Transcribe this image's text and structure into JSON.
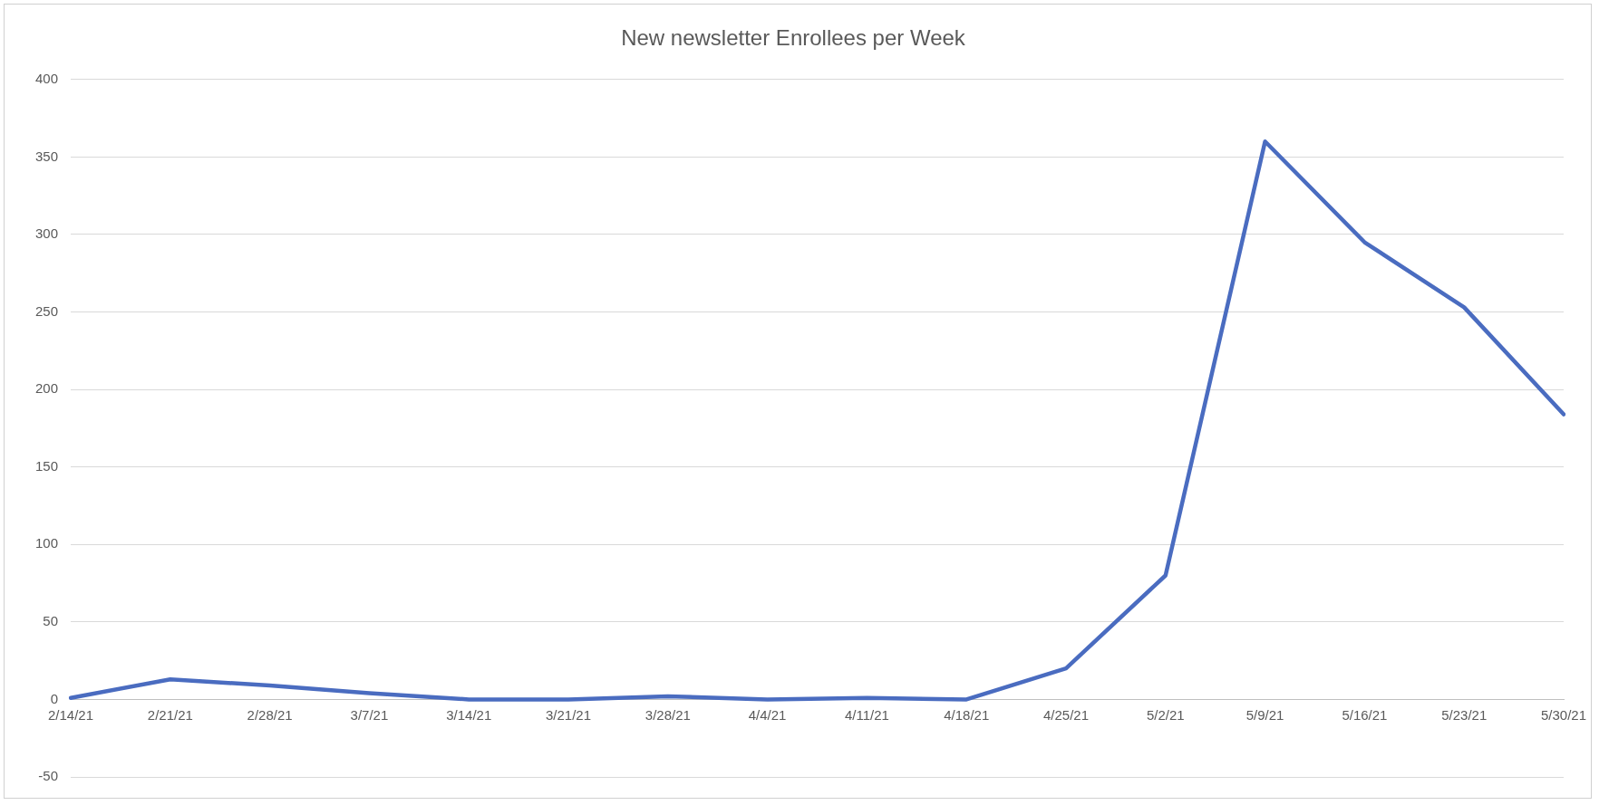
{
  "chart_data": {
    "type": "line",
    "title": "New newsletter Enrollees per Week",
    "categories": [
      "2/14/21",
      "2/21/21",
      "2/28/21",
      "3/7/21",
      "3/14/21",
      "3/21/21",
      "3/28/21",
      "4/4/21",
      "4/11/21",
      "4/18/21",
      "4/25/21",
      "5/2/21",
      "5/9/21",
      "5/16/21",
      "5/23/21",
      "5/30/21"
    ],
    "series": [
      {
        "color": "#4a6cc0",
        "values": [
          1,
          13,
          9,
          4,
          0,
          0,
          2,
          0,
          1,
          0,
          20,
          80,
          360,
          295,
          253,
          184
        ]
      }
    ],
    "ylim": [
      -50,
      400
    ],
    "yticks": [
      -50,
      0,
      50,
      100,
      150,
      200,
      250,
      300,
      350,
      400
    ],
    "grid": "y",
    "legend": false,
    "marker": "none",
    "line_style": "solid"
  }
}
